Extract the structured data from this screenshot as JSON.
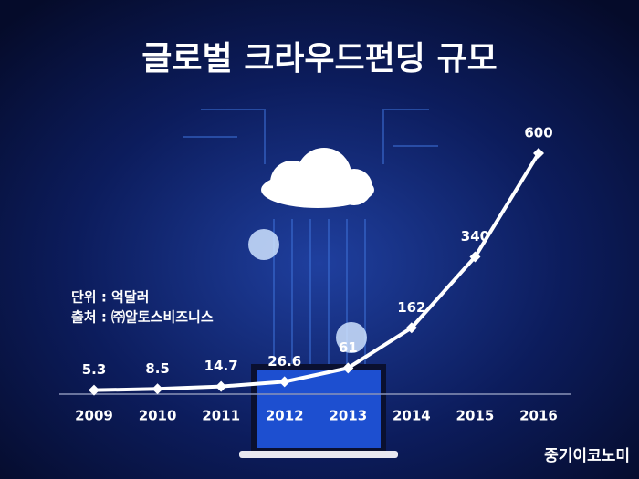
{
  "chart_data": {
    "type": "line",
    "title": "글로벌 크라우드펀딩 규모",
    "notes": [
      "단위 : 억달러",
      "출처 : ㈜알토스비즈니스"
    ],
    "watermark": "중기이코노미",
    "categories": [
      "2009",
      "2010",
      "2011",
      "2012",
      "2013",
      "2014",
      "2015",
      "2016"
    ],
    "values": [
      5.3,
      8.5,
      14.7,
      26.6,
      61,
      162,
      340,
      600
    ],
    "color": "#ffffff",
    "ylim": [
      0,
      600
    ]
  }
}
